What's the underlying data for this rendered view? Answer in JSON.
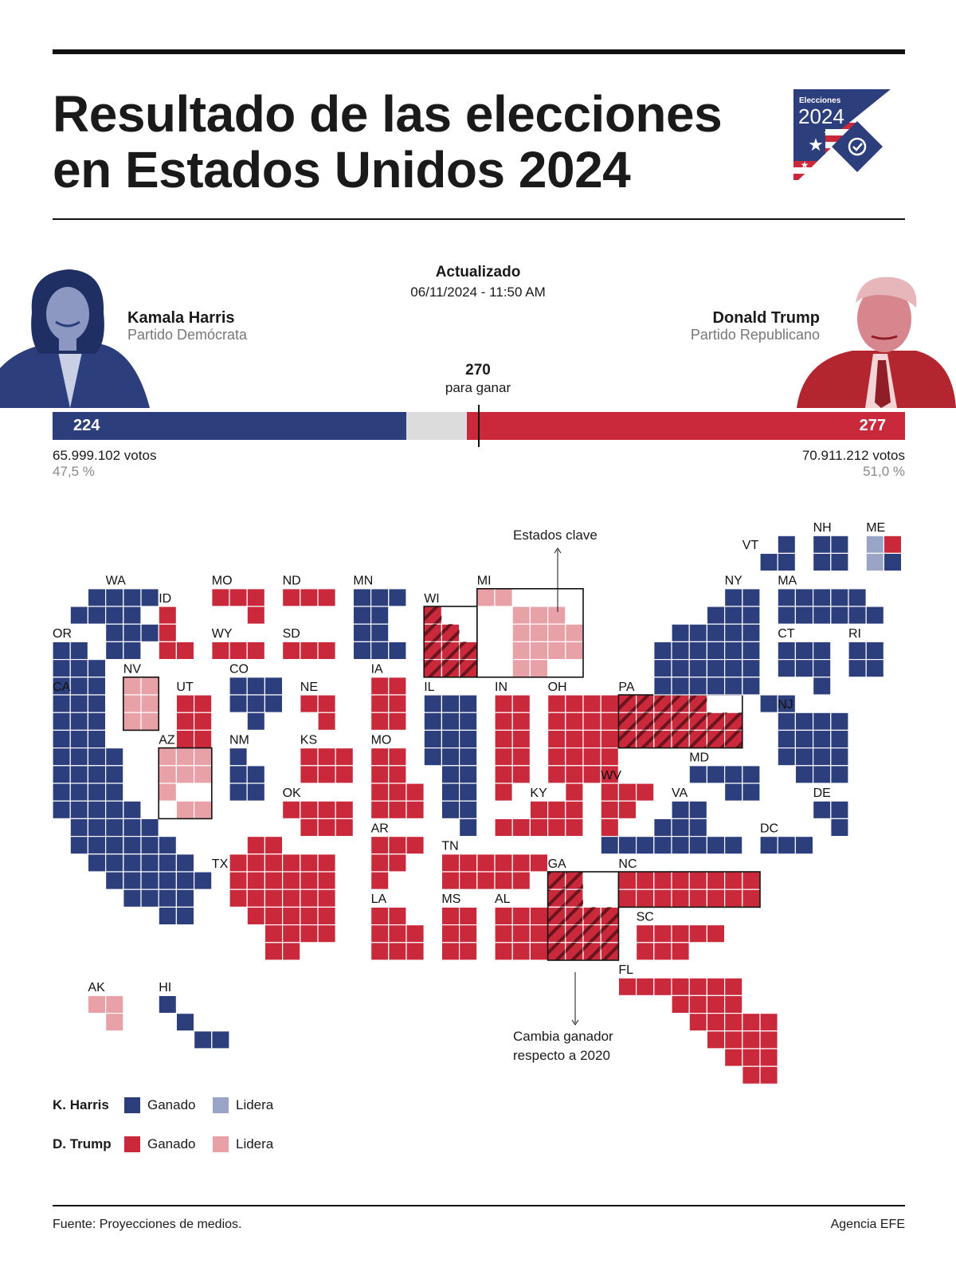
{
  "header": {
    "title_line1": "Resultado de las elecciones",
    "title_line2": "en Estados Unidos 2024",
    "logo_small": "Elecciones",
    "logo_year": "2024"
  },
  "update": {
    "label": "Actualizado",
    "datetime": "06/11/2024 - 11:50 AM"
  },
  "harris": {
    "name": "Kamala Harris",
    "party": "Partido Demócrata",
    "electoral_votes": "224",
    "votes": "65.999.102 votos",
    "percent": "47,5 %"
  },
  "trump": {
    "name": "Donald Trump",
    "party": "Partido Republicano",
    "electoral_votes": "277",
    "votes": "70.911.212 votos",
    "percent": "51,0 %"
  },
  "goal": {
    "number": "270",
    "text": "para ganar"
  },
  "colors": {
    "harris_won": "#2c3f7c",
    "harris_leads": "#9aa4c6",
    "trump_won": "#c9293a",
    "trump_leads": "#e8a1a7",
    "undecided": "#dcdcdc"
  },
  "annotations": {
    "key_states": "Estados clave",
    "change_line1": "Cambia ganador",
    "change_line2": "respecto a 2020"
  },
  "legend": {
    "harris_label": "K. Harris",
    "trump_label": "D. Trump",
    "won": "Ganado",
    "leads": "Lidera"
  },
  "footer": {
    "source": "Fuente: Proyecciones de medios.",
    "agency": "Agencia EFE"
  },
  "states": [
    {
      "code": "WA",
      "status": "harris_won"
    },
    {
      "code": "OR",
      "status": "harris_won"
    },
    {
      "code": "CA",
      "status": "harris_won"
    },
    {
      "code": "NV",
      "status": "trump_leads"
    },
    {
      "code": "ID",
      "status": "trump_won"
    },
    {
      "code": "UT",
      "status": "trump_won"
    },
    {
      "code": "AZ",
      "status": "trump_leads"
    },
    {
      "code": "MO",
      "status": "trump_won"
    },
    {
      "code": "WY",
      "status": "trump_won"
    },
    {
      "code": "CO",
      "status": "harris_won"
    },
    {
      "code": "NM",
      "status": "harris_won"
    },
    {
      "code": "ND",
      "status": "trump_won"
    },
    {
      "code": "SD",
      "status": "trump_won"
    },
    {
      "code": "NE",
      "status": "trump_won"
    },
    {
      "code": "KS",
      "status": "trump_won"
    },
    {
      "code": "OK",
      "status": "trump_won"
    },
    {
      "code": "TX",
      "status": "trump_won"
    },
    {
      "code": "MN",
      "status": "harris_won"
    },
    {
      "code": "IA",
      "status": "trump_won"
    },
    {
      "code": "AR",
      "status": "trump_won"
    },
    {
      "code": "LA",
      "status": "trump_won"
    },
    {
      "code": "WI",
      "status": "trump_won"
    },
    {
      "code": "IL",
      "status": "harris_won"
    },
    {
      "code": "MS",
      "status": "trump_won"
    },
    {
      "code": "MI",
      "status": "trump_leads"
    },
    {
      "code": "IN",
      "status": "trump_won"
    },
    {
      "code": "KY",
      "status": "trump_won"
    },
    {
      "code": "TN",
      "status": "trump_won"
    },
    {
      "code": "AL",
      "status": "trump_won"
    },
    {
      "code": "GA",
      "status": "trump_won"
    },
    {
      "code": "OH",
      "status": "trump_won"
    },
    {
      "code": "WV",
      "status": "trump_won"
    },
    {
      "code": "PA",
      "status": "trump_won"
    },
    {
      "code": "NC",
      "status": "trump_won"
    },
    {
      "code": "SC",
      "status": "trump_won"
    },
    {
      "code": "FL",
      "status": "trump_won"
    },
    {
      "code": "VA",
      "status": "harris_won"
    },
    {
      "code": "MD",
      "status": "harris_won"
    },
    {
      "code": "DC",
      "status": "harris_won"
    },
    {
      "code": "DE",
      "status": "harris_won"
    },
    {
      "code": "NJ",
      "status": "harris_won"
    },
    {
      "code": "NY",
      "status": "harris_won"
    },
    {
      "code": "CT",
      "status": "harris_won"
    },
    {
      "code": "RI",
      "status": "harris_won"
    },
    {
      "code": "MA",
      "status": "harris_won"
    },
    {
      "code": "VT",
      "status": "harris_won"
    },
    {
      "code": "NH",
      "status": "harris_won"
    },
    {
      "code": "ME",
      "status": "split"
    },
    {
      "code": "AK",
      "status": "trump_leads"
    },
    {
      "code": "HI",
      "status": "harris_won"
    }
  ]
}
